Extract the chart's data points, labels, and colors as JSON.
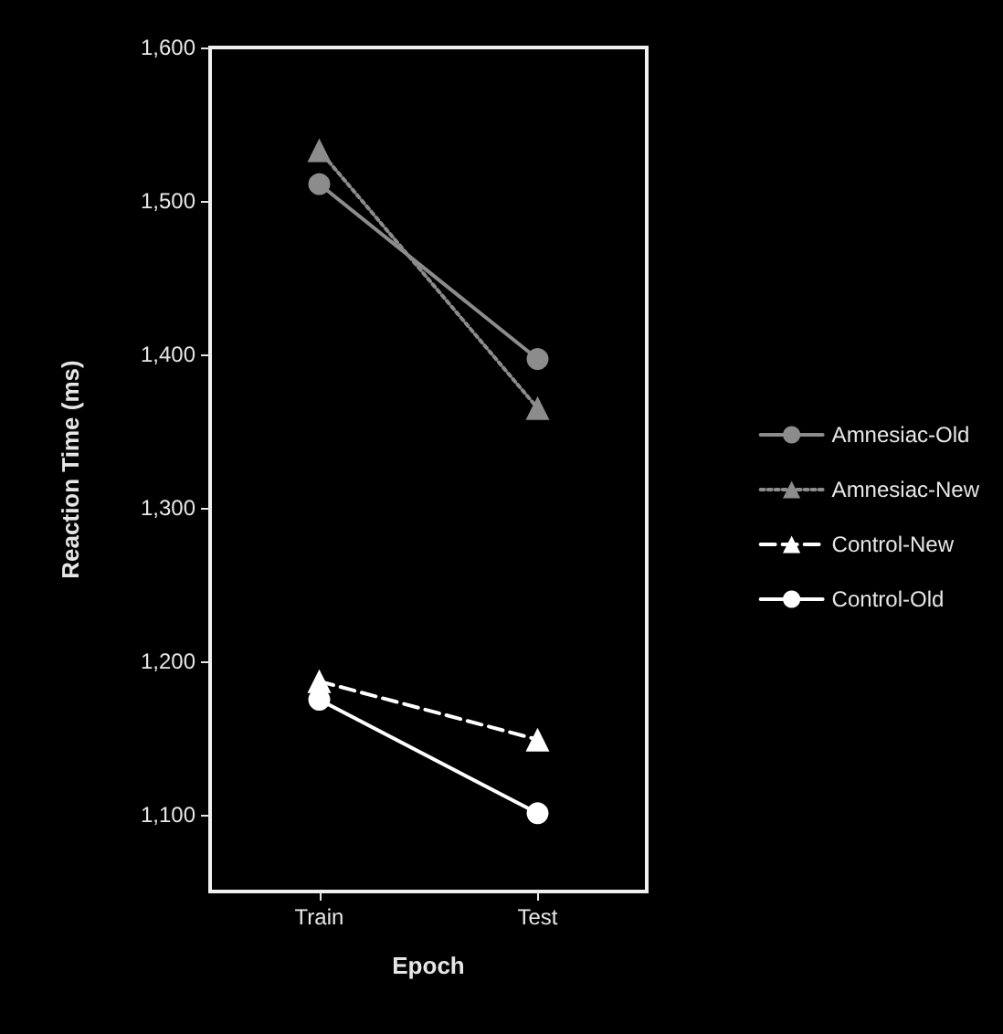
{
  "chart_data": {
    "type": "line",
    "xlabel": "Epoch",
    "ylabel": "Reaction Time (ms)",
    "categories": [
      "Train",
      "Test"
    ],
    "ylim": [
      1050,
      1600
    ],
    "yticks": [
      {
        "value": 1100,
        "label": "1,100"
      },
      {
        "value": 1200,
        "label": "1,200"
      },
      {
        "value": 1300,
        "label": "1,300"
      },
      {
        "value": 1400,
        "label": "1,400"
      },
      {
        "value": 1500,
        "label": "1,500"
      },
      {
        "value": 1600,
        "label": "1,600"
      }
    ],
    "grid": false,
    "legend": "right",
    "series": [
      {
        "name": "Amnesiac-Old",
        "color": "#8c8c8c",
        "values": [
          1511,
          1397
        ],
        "marker": "circle",
        "line_style": "solid"
      },
      {
        "name": "Amnesiac-New",
        "color": "#8c8c8c",
        "values": [
          1533,
          1365
        ],
        "marker": "triangle",
        "line_style": "dotted"
      },
      {
        "name": "Control-New",
        "color": "#ffffff",
        "values": [
          1187,
          1149
        ],
        "marker": "triangle",
        "line_style": "dashed"
      },
      {
        "name": "Control-Old",
        "color": "#ffffff",
        "values": [
          1175,
          1101
        ],
        "marker": "circle",
        "line_style": "solid"
      }
    ]
  }
}
